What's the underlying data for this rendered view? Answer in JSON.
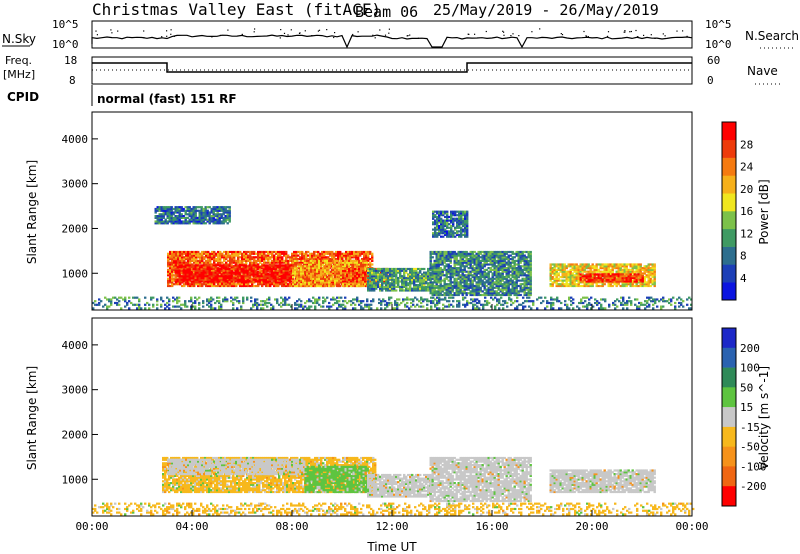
{
  "header": {
    "title": "Christmas Valley East (fitACF)",
    "beam": "Beam 06",
    "dates": "25/May/2019 - 26/May/2019"
  },
  "strip": {
    "nsky_label": "N.Sky",
    "nsky_top": "10^5",
    "nsky_bottom": "10^0",
    "nsearch_label": "N.Search",
    "nsearch_top": "10^5",
    "nsearch_bottom": "10^0",
    "freq_label": "Freq.",
    "freq_unit": "[MHz]",
    "freq_top": "18",
    "freq_bottom": "8",
    "nave_label": "Nave",
    "nave_top": "60",
    "nave_bottom": "0",
    "cpid_label": "CPID",
    "cpid_text": "normal (fast) 151 RF"
  },
  "chart_data": [
    {
      "type": "heatmap",
      "id": "power",
      "ylabel": "Slant Range [km]",
      "xlabel": "",
      "x_ticks": [
        "00:00",
        "04:00",
        "08:00",
        "12:00",
        "16:00",
        "20:00",
        "00:00"
      ],
      "y_ticks": [
        1000,
        2000,
        3000,
        4000
      ],
      "xlim_hours": [
        0,
        24
      ],
      "ylim_km": [
        180,
        4600
      ],
      "colorbar": {
        "label": "Power [dB]",
        "ticks": [
          "4",
          "8",
          "12",
          "16",
          "20",
          "24",
          "28"
        ]
      },
      "colors": [
        "#0b14e0",
        "#1c3fb7",
        "#2d6e8e",
        "#3f9a63",
        "#7cc14a",
        "#f0e61f",
        "#f6b01a",
        "#f57a10",
        "#ee3b0b",
        "#ff0000"
      ],
      "regions": [
        {
          "t0": 3.0,
          "t1": 11.2,
          "r0": 700,
          "r1": 1500,
          "level": 0.8
        },
        {
          "t0": 3.3,
          "t1": 8.0,
          "r0": 800,
          "r1": 1200,
          "level": 0.95
        },
        {
          "t0": 8.0,
          "t1": 11.0,
          "r0": 700,
          "r1": 1300,
          "level": 0.7
        },
        {
          "t0": 10.0,
          "t1": 11.8,
          "r0": 800,
          "r1": 1100,
          "level": 0.85
        },
        {
          "t0": 11.0,
          "t1": 13.5,
          "r0": 600,
          "r1": 1100,
          "level": 0.35
        },
        {
          "t0": 13.5,
          "t1": 17.5,
          "r0": 500,
          "r1": 1500,
          "level": 0.3
        },
        {
          "t0": 18.3,
          "t1": 22.5,
          "r0": 700,
          "r1": 1200,
          "level": 0.6
        },
        {
          "t0": 19.5,
          "t1": 22.0,
          "r0": 800,
          "r1": 1000,
          "level": 0.9
        },
        {
          "t0": 2.5,
          "t1": 5.5,
          "r0": 2100,
          "r1": 2500,
          "level": 0.25
        },
        {
          "t0": 13.6,
          "t1": 15.0,
          "r0": 1800,
          "r1": 2400,
          "level": 0.25
        },
        {
          "t0": 0.0,
          "t1": 24.0,
          "r0": 200,
          "r1": 450,
          "level": 0.3
        }
      ]
    },
    {
      "type": "heatmap",
      "id": "velocity",
      "ylabel": "Slant Range [km]",
      "xlabel": "Time UT",
      "x_ticks": [
        "00:00",
        "04:00",
        "08:00",
        "12:00",
        "16:00",
        "20:00",
        "00:00"
      ],
      "y_ticks": [
        1000,
        2000,
        3000,
        4000
      ],
      "xlim_hours": [
        0,
        24
      ],
      "ylim_km": [
        180,
        4600
      ],
      "colorbar": {
        "label": "Velocity [m s^-1]",
        "ticks": [
          "200",
          "100",
          "50",
          "15",
          "-15",
          "-50",
          "-100",
          "-200"
        ]
      },
      "colors": [
        "#1c28c8",
        "#2a62b0",
        "#2f8a58",
        "#5ec440",
        "#c8c8c8",
        "#f7b81c",
        "#f6921a",
        "#f06612",
        "#ff0000"
      ],
      "regions": [
        {
          "t0": 2.8,
          "t1": 11.3,
          "r0": 700,
          "r1": 1500,
          "cls": "orange"
        },
        {
          "t0": 3.0,
          "t1": 8.5,
          "r0": 1100,
          "r1": 1450,
          "cls": "grey"
        },
        {
          "t0": 8.5,
          "t1": 11.0,
          "r0": 700,
          "r1": 1300,
          "cls": "green"
        },
        {
          "t0": 11.0,
          "t1": 13.5,
          "r0": 600,
          "r1": 1100,
          "cls": "grey"
        },
        {
          "t0": 13.5,
          "t1": 17.5,
          "r0": 500,
          "r1": 1500,
          "cls": "grey"
        },
        {
          "t0": 18.3,
          "t1": 22.5,
          "r0": 700,
          "r1": 1200,
          "cls": "grey"
        },
        {
          "t0": 0.0,
          "t1": 24.0,
          "r0": 200,
          "r1": 450,
          "cls": "orange"
        }
      ]
    }
  ]
}
